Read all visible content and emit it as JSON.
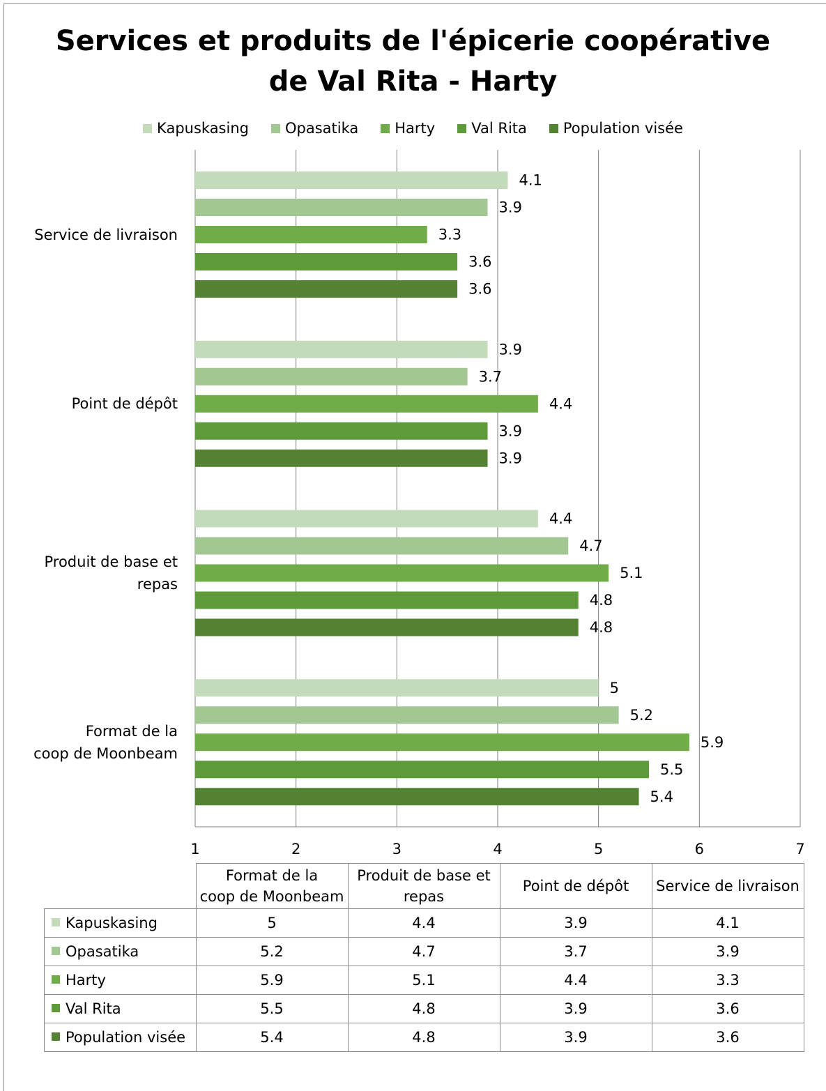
{
  "colors": {
    "Kapuskasing": "#c4dbbb",
    "Opasatika": "#a2c793",
    "Harty": "#70ac47",
    "Val Rita": "#5f9a3a",
    "Population visée": "#548234",
    "grid": "#7f7f7f"
  },
  "chart_data": {
    "type": "bar",
    "orientation": "horizontal",
    "title": "Services et produits de l'épicerie coopérative de Val Rita - Harty",
    "title_lines": [
      "Services et produits de l'épicerie coopérative",
      "de Val Rita - Harty"
    ],
    "categories": [
      "Format de la coop de Moonbeam",
      "Produit de base et repas",
      "Point de dépôt",
      "Service de livraison"
    ],
    "category_labels_display": [
      "Format de la\ncoop de Moonbeam",
      "Produit de base et\nrepas",
      "Point de dépôt",
      "Service de livraison"
    ],
    "series": [
      {
        "name": "Kapuskasing",
        "values": [
          5,
          4.4,
          3.9,
          4.1
        ]
      },
      {
        "name": "Opasatika",
        "values": [
          5.2,
          4.7,
          3.7,
          3.9
        ]
      },
      {
        "name": "Harty",
        "values": [
          5.9,
          5.1,
          4.4,
          3.3
        ]
      },
      {
        "name": "Val Rita",
        "values": [
          5.5,
          4.8,
          3.9,
          3.6
        ]
      },
      {
        "name": "Population visée",
        "values": [
          5.4,
          4.8,
          3.9,
          3.6
        ]
      }
    ],
    "xlim": [
      1,
      7
    ],
    "xticks": [
      "1",
      "2",
      "3",
      "4",
      "5",
      "6",
      "7"
    ],
    "grid": true,
    "legend": "top",
    "data_labels": true,
    "data_table": true
  }
}
